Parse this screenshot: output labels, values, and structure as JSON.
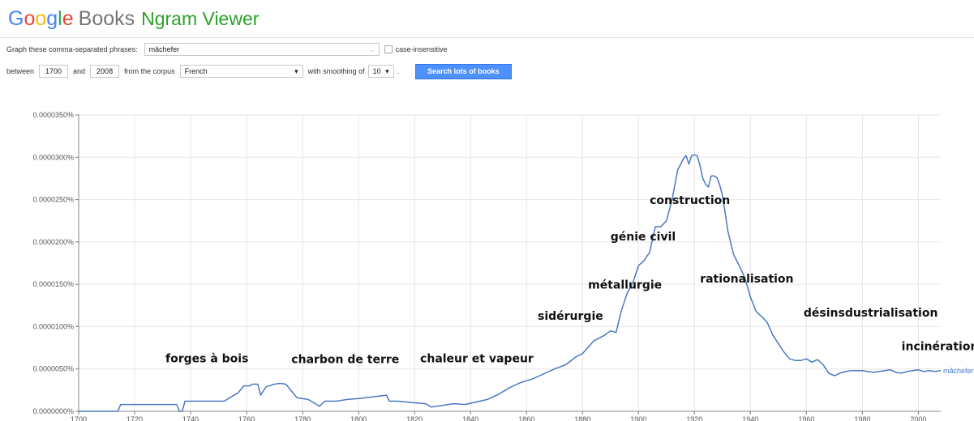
{
  "header": {
    "logo_letters": [
      "G",
      "o",
      "o",
      "g",
      "l",
      "e"
    ],
    "books": "Books",
    "ngram": "Ngram Viewer"
  },
  "controls": {
    "phrases_label": "Graph these comma-separated phrases:",
    "phrase_value": "mâchefer",
    "case_label": "case-insensitive",
    "between_label": "between",
    "start_year": "1700",
    "and_label": "and",
    "end_year": "2008",
    "corpus_label": "from the corpus",
    "corpus_value": "French",
    "smoothing_label": "with smoothing of",
    "smoothing_value": "10",
    "search_label": "Search lots of books"
  },
  "colors": {
    "series": "#4a78c2",
    "button": "#4d90fe",
    "grid": "#e6e6e6"
  },
  "chart_data": {
    "type": "line",
    "xlim": [
      1700,
      2008
    ],
    "ylim": [
      0,
      3.5e-05
    ],
    "xticks": [
      1700,
      1720,
      1740,
      1760,
      1780,
      1800,
      1820,
      1840,
      1860,
      1880,
      1900,
      1920,
      1940,
      1960,
      1980,
      2000
    ],
    "yticks": [
      {
        "value": 0,
        "label": "0.0000000%"
      },
      {
        "value": 5e-06,
        "label": "0.0000050%"
      },
      {
        "value": 1e-05,
        "label": "0.0000100%"
      },
      {
        "value": 1.5e-05,
        "label": "0.0000150%"
      },
      {
        "value": 2e-05,
        "label": "0.0000200%"
      },
      {
        "value": 2.5e-05,
        "label": "0.0000250%"
      },
      {
        "value": 3e-05,
        "label": "0.0000300%"
      },
      {
        "value": 3.5e-05,
        "label": "0.0000350%"
      }
    ],
    "grid": true,
    "series": [
      {
        "name": "mâchefer",
        "x": [
          1700,
          1714,
          1715,
          1735,
          1736,
          1737,
          1738,
          1752,
          1755,
          1757,
          1759,
          1761,
          1762,
          1764,
          1765,
          1767,
          1770,
          1772,
          1774,
          1776,
          1778,
          1782,
          1785,
          1786,
          1788,
          1792,
          1796,
          1800,
          1805,
          1810,
          1811,
          1814,
          1820,
          1824,
          1826,
          1830,
          1834,
          1838,
          1842,
          1846,
          1850,
          1854,
          1858,
          1862,
          1866,
          1870,
          1874,
          1878,
          1880,
          1884,
          1888,
          1890,
          1892,
          1894,
          1896,
          1898,
          1900,
          1902,
          1904,
          1906,
          1908,
          1910,
          1912,
          1914,
          1916,
          1917,
          1918,
          1919,
          1920,
          1921,
          1922,
          1923,
          1924,
          1925,
          1926,
          1927,
          1928,
          1929,
          1930,
          1932,
          1934,
          1936,
          1938,
          1940,
          1942,
          1944,
          1946,
          1948,
          1950,
          1952,
          1954,
          1956,
          1958,
          1960,
          1962,
          1964,
          1966,
          1968,
          1970,
          1972,
          1974,
          1976,
          1978,
          1980,
          1982,
          1984,
          1986,
          1988,
          1990,
          1992,
          1994,
          1996,
          1998,
          2000,
          2002,
          2004,
          2006,
          2008
        ],
        "values": [
          0,
          0,
          8e-07,
          8e-07,
          0,
          0,
          1.2e-06,
          1.2e-06,
          1.8e-06,
          2.2e-06,
          3e-06,
          3e-06,
          3.2e-06,
          3.2e-06,
          1.9e-06,
          2.9e-06,
          3.2e-06,
          3.3e-06,
          3.2e-06,
          2.4e-06,
          1.6e-06,
          1.4e-06,
          8e-07,
          6e-07,
          1.2e-06,
          1.2e-06,
          1.4e-06,
          1.5e-06,
          1.7e-06,
          1.9e-06,
          1.2e-06,
          1.2e-06,
          1e-06,
          9e-07,
          5e-07,
          7e-07,
          9e-07,
          8e-07,
          1.1e-06,
          1.4e-06,
          2e-06,
          2.8e-06,
          3.4e-06,
          3.8e-06,
          4.4e-06,
          5e-06,
          5.5e-06,
          6.5e-06,
          6.8e-06,
          8.3e-06,
          9e-06,
          9.5e-06,
          9.3e-06,
          1.2e-05,
          1.4e-05,
          1.52e-05,
          1.72e-05,
          1.78e-05,
          1.88e-05,
          2.18e-05,
          2.18e-05,
          2.25e-05,
          2.5e-05,
          2.85e-05,
          2.98e-05,
          3.02e-05,
          2.92e-05,
          3.02e-05,
          3.03e-05,
          3.02e-05,
          2.9e-05,
          2.75e-05,
          2.68e-05,
          2.65e-05,
          2.78e-05,
          2.78e-05,
          2.76e-05,
          2.68e-05,
          2.55e-05,
          2.12e-05,
          1.85e-05,
          1.72e-05,
          1.58e-05,
          1.35e-05,
          1.18e-05,
          1.12e-05,
          1.05e-05,
          9e-06,
          8e-06,
          7e-06,
          6.2e-06,
          6e-06,
          6e-06,
          6.2e-06,
          5.8e-06,
          6.1e-06,
          5.5e-06,
          4.5e-06,
          4.2e-06,
          4.5e-06,
          4.7e-06,
          4.8e-06,
          4.8e-06,
          4.8e-06,
          4.7e-06,
          4.6e-06,
          4.7e-06,
          4.8e-06,
          4.9e-06,
          4.6e-06,
          4.5e-06,
          4.7e-06,
          4.8e-06,
          4.9e-06,
          4.7e-06,
          4.8e-06,
          4.7e-06,
          4.8e-06
        ]
      }
    ],
    "annotations": [
      {
        "text": "forges à bois",
        "x": 1731,
        "y": 5.8e-06
      },
      {
        "text": "charbon de terre",
        "x": 1776,
        "y": 5.7e-06
      },
      {
        "text": "chaleur et vapeur",
        "x": 1822,
        "y": 5.8e-06
      },
      {
        "text": "sidérurgie",
        "x": 1864,
        "y": 1.08e-05
      },
      {
        "text": "métallurgie",
        "x": 1882,
        "y": 1.45e-05
      },
      {
        "text": "génie civil",
        "x": 1890,
        "y": 2.02e-05
      },
      {
        "text": "construction",
        "x": 1904,
        "y": 2.45e-05
      },
      {
        "text": "rationalisation",
        "x": 1922,
        "y": 1.52e-05
      },
      {
        "text": "désinsdustrialisation",
        "x": 1959,
        "y": 1.12e-05
      },
      {
        "text": "incinération",
        "x": 1994,
        "y": 7.2e-06
      }
    ]
  }
}
